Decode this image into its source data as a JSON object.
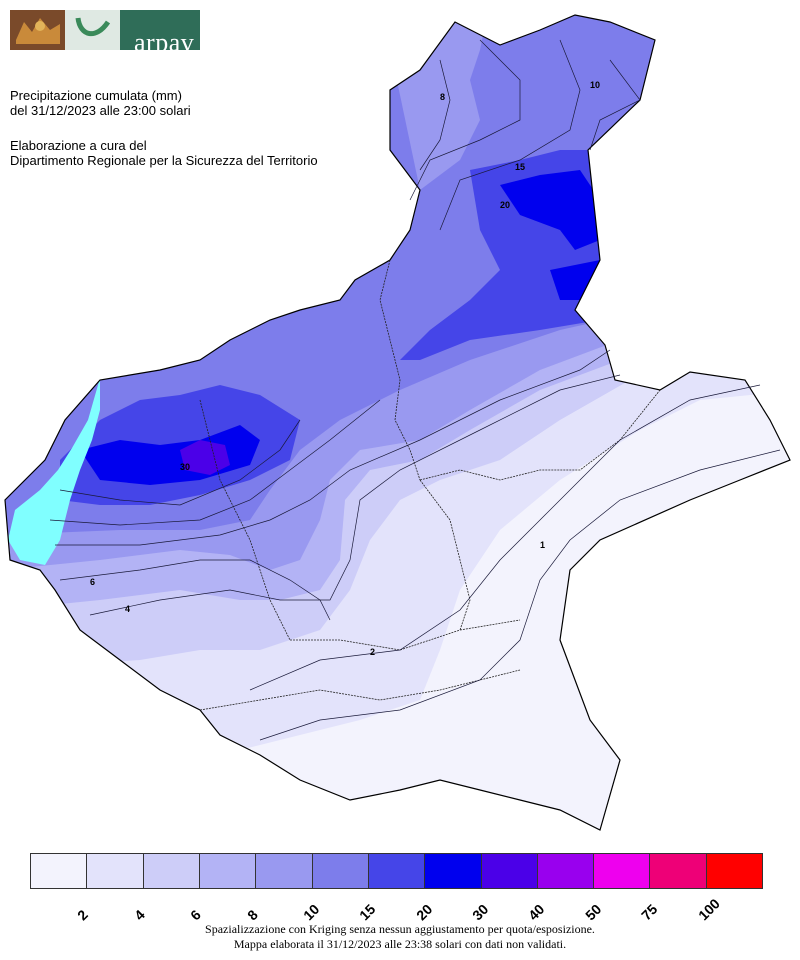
{
  "header": {
    "logo_text": "arpav",
    "title_line1": "Precipitazione cumulata (mm)",
    "title_line2": "del 31/12/2023 alle 23:00 solari",
    "credit_line1": "Elaborazione a cura del",
    "credit_line2": "Dipartimento Regionale per la Sicurezza del Territorio"
  },
  "legend": {
    "colors": [
      "#f3f3fd",
      "#e3e3fb",
      "#cdcdf8",
      "#b3b3f5",
      "#9999f0",
      "#7d7deb",
      "#4545e8",
      "#0000ee",
      "#4b00e8",
      "#9900ee",
      "#ee00ee",
      "#ee0077",
      "#ff0000"
    ],
    "ticks": [
      "2",
      "4",
      "6",
      "8",
      "10",
      "15",
      "20",
      "30",
      "40",
      "50",
      "75",
      "100"
    ]
  },
  "map_contour_labels": [
    "8",
    "10",
    "15",
    "20",
    "30",
    "6",
    "4",
    "2",
    "1"
  ],
  "footer": {
    "line1": "Spazializzazione con Kriging senza nessun aggiustamento per quota/esposizione.",
    "line2": "Mappa elaborata il 31/12/2023 alle 23:38 solari con dati non validati."
  }
}
